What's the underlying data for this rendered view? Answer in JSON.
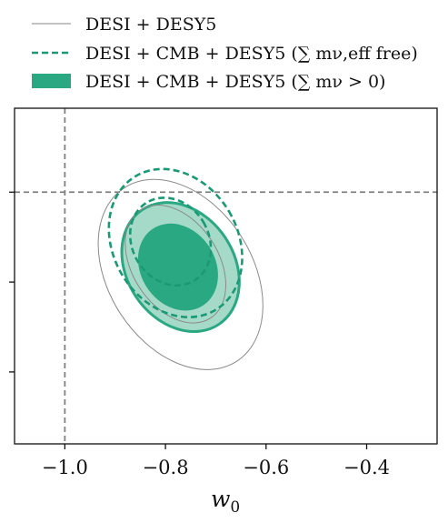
{
  "chart_data": {
    "type": "contour",
    "xlabel_base": "w",
    "xlabel_sub": "0",
    "xlim": [
      -1.1,
      -0.26
    ],
    "ylim": [
      -1.68,
      0.56
    ],
    "x_ticks": [
      -1.0,
      -0.8,
      -0.6,
      -0.4
    ],
    "x_tick_labels": [
      "−1.0",
      "−0.8",
      "−0.6",
      "−0.4"
    ],
    "y_ticks": [
      -1.2,
      -0.6,
      0.0
    ],
    "y_tick_labels": [
      "",
      "",
      ""
    ],
    "reference_lines": {
      "x": -1.0,
      "y": 0.0,
      "style": "dashed",
      "color": "#808080"
    },
    "legend_position": "top",
    "legend": [
      {
        "label": "DESI + DESY5",
        "style": "thin-line",
        "color": "#9e9e9e"
      },
      {
        "label": "DESI + CMB + DESY5 (∑ mν,eff free)",
        "style": "dashed",
        "color": "#1a9a74"
      },
      {
        "label": "DESI + CMB + DESY5 (∑ mν > 0)",
        "style": "filled",
        "color": "#2aa882"
      }
    ],
    "series": [
      {
        "name": "DESI + DESY5",
        "style": "outline",
        "color": "#8a8a8a",
        "contours": [
          {
            "level": "68%",
            "center": [
              -0.78,
              -0.48
            ],
            "semi_axes": [
              0.045,
              0.43
            ],
            "angle_deg": -33
          },
          {
            "level": "95%",
            "center": [
              -0.77,
              -0.55
            ],
            "semi_axes": [
              0.075,
              0.69
            ],
            "angle_deg": -33
          }
        ]
      },
      {
        "name": "DESI + CMB + DESY5 (∑ mν,eff free)",
        "style": "dashed",
        "color": "#1a9a74",
        "contours": [
          {
            "level": "68%",
            "center": [
              -0.79,
              -0.33
            ],
            "semi_axes": [
              0.04,
              0.305
            ],
            "angle_deg": -31
          },
          {
            "level": "95%",
            "center": [
              -0.78,
              -0.34
            ],
            "semi_axes": [
              0.065,
              0.52
            ],
            "angle_deg": -31
          }
        ]
      },
      {
        "name": "DESI + CMB + DESY5 (∑ mν > 0)",
        "style": "filled",
        "color": "#2aa882",
        "inner_fill": "#2aa882",
        "outer_fill": "#a5dac8",
        "contours": [
          {
            "level": "68%",
            "center": [
              -0.775,
              -0.5
            ],
            "semi_axes": [
              0.038,
              0.3
            ],
            "angle_deg": -33
          },
          {
            "level": "95%",
            "center": [
              -0.77,
              -0.5
            ],
            "semi_axes": [
              0.056,
              0.46
            ],
            "angle_deg": -34
          }
        ]
      }
    ]
  }
}
